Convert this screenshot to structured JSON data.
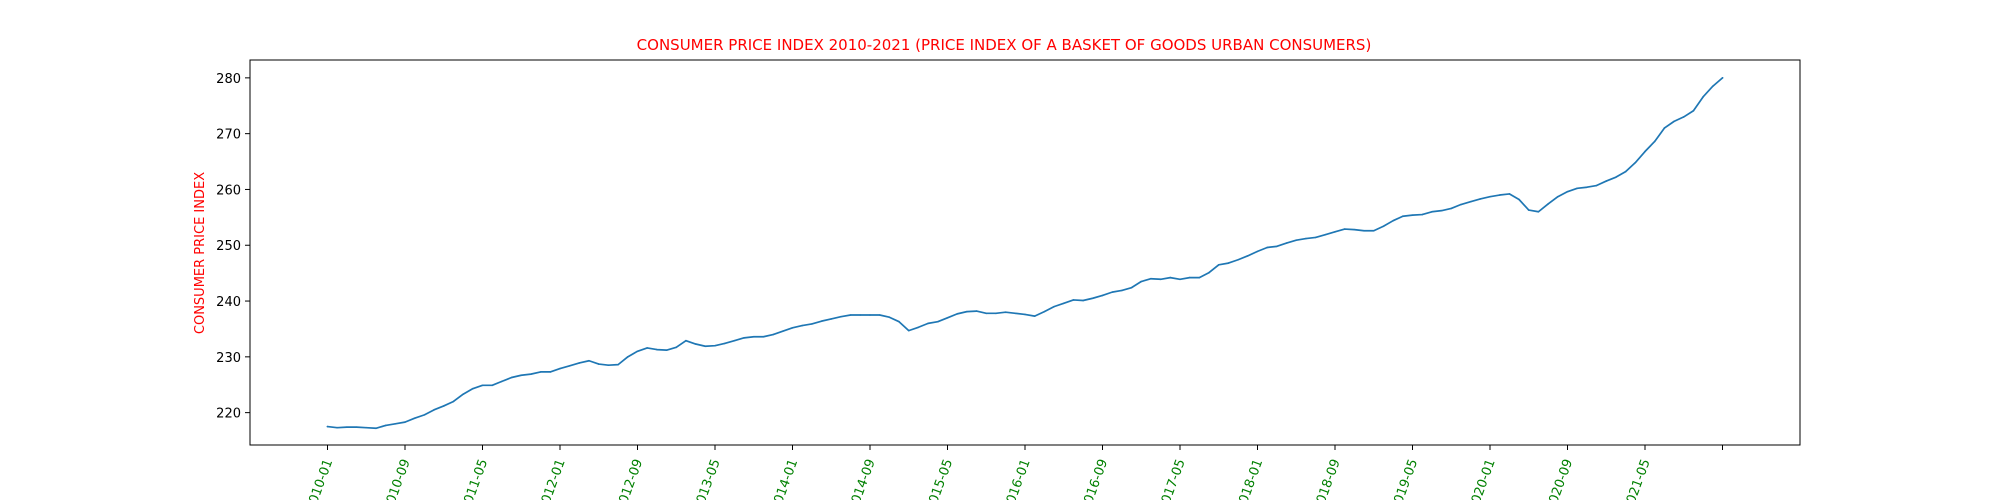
{
  "chart_data": {
    "type": "line",
    "title": "CONSUMER PRICE INDEX 2010-2021 (PRICE INDEX OF A BASKET OF GOODS URBAN CONSUMERS)",
    "xlabel": "",
    "ylabel": "CONSUMER PRICE INDEX",
    "x_start": "2010-01",
    "x_frequency": "monthly",
    "x_ticks": [
      "2010-01",
      "2010-09",
      "2011-05",
      "2012-01",
      "2012-09",
      "2013-05",
      "2014-01",
      "2014-09",
      "2015-05",
      "2016-01",
      "2016-09",
      "2017-05",
      "2018-01",
      "2018-09",
      "2019-05",
      "2020-01",
      "2020-09",
      "2021-05",
      "2022-01"
    ],
    "x_tick_labels": [
      "2010-01",
      "2010-09",
      "2011-05",
      "2012-01",
      "2012-09",
      "2013-05",
      "2014-01",
      "2014-09",
      "2015-05",
      "2016-01",
      "2016-09",
      "2017-05",
      "2018-01",
      "2018-09",
      "2019-05",
      "2020-01",
      "2020-09",
      "2021-05",
      ""
    ],
    "xlim": [
      "2009-05",
      "2022-09"
    ],
    "y_ticks": [
      220,
      230,
      240,
      250,
      260,
      270,
      280
    ],
    "ylim": [
      214.2,
      283.2
    ],
    "grid": false,
    "colors": {
      "title": "#ff0000",
      "ylabel": "#ff0000",
      "x_tick_labels": "#008000",
      "line": "#1f77b4",
      "axes": "#000000"
    },
    "series": [
      {
        "values": [
          217.5,
          217.3,
          217.4,
          217.4,
          217.3,
          217.2,
          217.7,
          218.0,
          218.3,
          219.0,
          219.6,
          220.5,
          221.2,
          222.0,
          223.3,
          224.3,
          224.9,
          224.9,
          225.6,
          226.3,
          226.7,
          226.9,
          227.3,
          227.3,
          227.9,
          228.4,
          228.9,
          229.3,
          228.7,
          228.5,
          228.6,
          230.0,
          231.0,
          231.6,
          231.3,
          231.2,
          231.7,
          232.9,
          232.3,
          231.9,
          232.0,
          232.4,
          232.9,
          233.4,
          233.6,
          233.6,
          234.0,
          234.6,
          235.2,
          235.6,
          235.9,
          236.4,
          236.8,
          237.2,
          237.5,
          237.5,
          237.5,
          237.5,
          237.1,
          236.3,
          234.7,
          235.3,
          236.0,
          236.3,
          237.0,
          237.7,
          238.1,
          238.2,
          237.8,
          237.8,
          238.0,
          237.8,
          237.6,
          237.3,
          238.1,
          239.0,
          239.6,
          240.2,
          240.1,
          240.5,
          241.0,
          241.6,
          241.9,
          242.4,
          243.5,
          244.0,
          243.9,
          244.2,
          243.9,
          244.2,
          244.2,
          245.1,
          246.5,
          246.8,
          247.4,
          248.1,
          248.9,
          249.6,
          249.8,
          250.4,
          250.9,
          251.2,
          251.4,
          251.9,
          252.4,
          252.9,
          252.8,
          252.6,
          252.6,
          253.4,
          254.4,
          255.2,
          255.4,
          255.5,
          256.0,
          256.2,
          256.6,
          257.3,
          257.8,
          258.3,
          258.7,
          259.0,
          259.2,
          258.2,
          256.3,
          256.0,
          257.4,
          258.7,
          259.6,
          260.2,
          260.4,
          260.7,
          261.5,
          262.2,
          263.2,
          264.8,
          266.8,
          268.6,
          271.0,
          272.2,
          273.0,
          274.1,
          276.6,
          278.5,
          280.0
        ]
      }
    ]
  }
}
